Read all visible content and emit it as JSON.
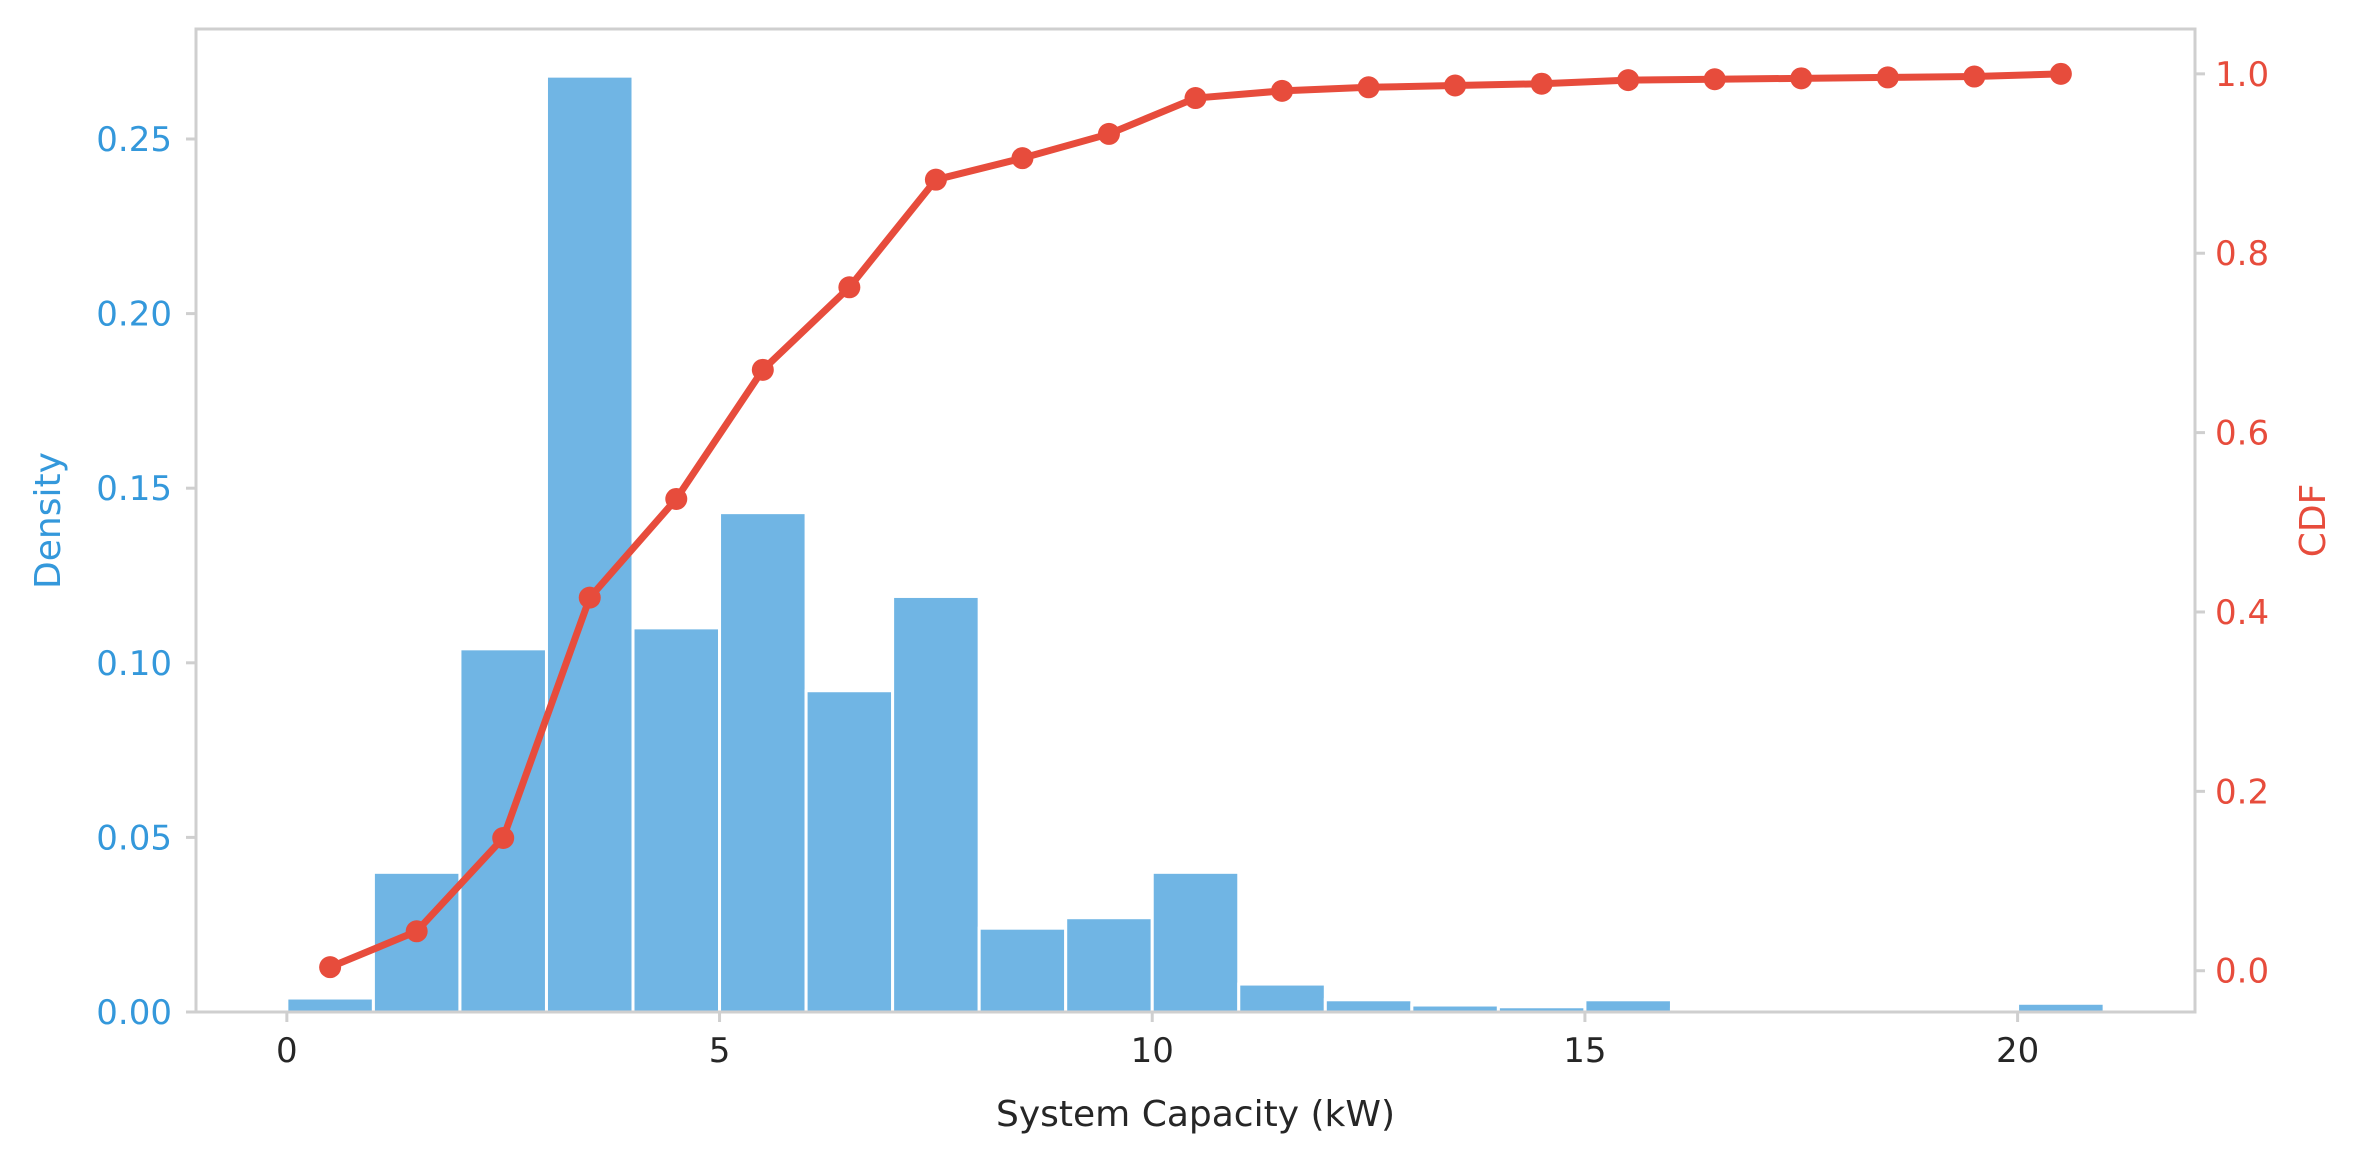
{
  "chart_data": {
    "type": "bar",
    "title": "",
    "xlabel": "System Capacity (kW)",
    "ylabel": "Density",
    "y2label": "CDF",
    "grid": false,
    "xlim": [
      -1.05,
      22.05
    ],
    "ylim": [
      0,
      0.2815
    ],
    "y2lim": [
      -0.046,
      1.05
    ],
    "xticks": [
      0,
      5,
      10,
      15,
      20
    ],
    "yticks": [
      0.0,
      0.05,
      0.1,
      0.15,
      0.2,
      0.25
    ],
    "y2ticks": [
      0.0,
      0.2,
      0.4,
      0.6,
      0.8,
      1.0
    ],
    "histogram": {
      "name": "Density",
      "bin_width": 1,
      "bin_edges": [
        0,
        1,
        2,
        3,
        4,
        5,
        6,
        7,
        8,
        9,
        10,
        11,
        12,
        13,
        14,
        15,
        16,
        17,
        18,
        19,
        20,
        21
      ],
      "values": [
        0.004,
        0.04,
        0.104,
        0.268,
        0.11,
        0.143,
        0.092,
        0.119,
        0.024,
        0.027,
        0.04,
        0.008,
        0.0035,
        0.002,
        0.0015,
        0.0035,
        0.0008,
        0.0004,
        0.0003,
        0.0003,
        0.0025
      ]
    },
    "cdf": {
      "name": "CDF",
      "x": [
        0.5,
        1.5,
        2.5,
        3.5,
        4.5,
        5.5,
        6.5,
        7.5,
        8.5,
        9.5,
        10.5,
        11.5,
        12.5,
        13.5,
        14.5,
        15.5,
        16.5,
        17.5,
        18.5,
        19.5,
        20.5
      ],
      "values": [
        0.004,
        0.044,
        0.148,
        0.416,
        0.526,
        0.67,
        0.762,
        0.882,
        0.906,
        0.933,
        0.973,
        0.981,
        0.985,
        0.987,
        0.989,
        0.993,
        0.994,
        0.995,
        0.996,
        0.997,
        1.0
      ]
    },
    "colors": {
      "bars": "#70b5e4",
      "density_axis": "#3498db",
      "cdf": "#e74c3c",
      "x_axis_text": "#262626",
      "frame": "#cfcfcf"
    }
  }
}
